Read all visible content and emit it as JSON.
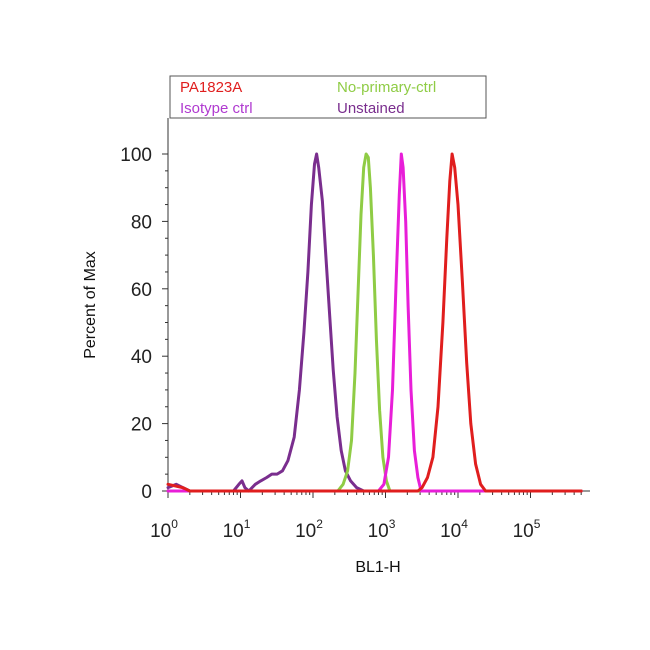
{
  "chart_data": {
    "type": "line",
    "title": "",
    "xlabel": "BL1-H",
    "ylabel": "Percent of Max",
    "x_scale": "log",
    "xlim": [
      1,
      500000
    ],
    "ylim": [
      0,
      108
    ],
    "x_ticks": [
      {
        "value": 1,
        "base": "10",
        "exp": "0"
      },
      {
        "value": 10,
        "base": "10",
        "exp": "1"
      },
      {
        "value": 100,
        "base": "10",
        "exp": "2"
      },
      {
        "value": 1000,
        "base": "10",
        "exp": "3"
      },
      {
        "value": 10000,
        "base": "10",
        "exp": "4"
      },
      {
        "value": 100000,
        "base": "10",
        "exp": "5"
      }
    ],
    "y_ticks": [
      0,
      20,
      40,
      60,
      80,
      100
    ],
    "legend_position": "top",
    "series": [
      {
        "name": "Isotype ctrl",
        "color": "#7a2e8e",
        "points": [
          [
            1,
            1
          ],
          [
            1.3,
            2
          ],
          [
            1.6,
            1
          ],
          [
            2,
            0
          ],
          [
            8,
            0
          ],
          [
            9.5,
            2
          ],
          [
            10.5,
            3
          ],
          [
            11.5,
            1
          ],
          [
            13,
            0
          ],
          [
            16,
            2
          ],
          [
            19,
            3
          ],
          [
            23,
            4
          ],
          [
            27,
            5
          ],
          [
            32,
            5
          ],
          [
            38,
            6
          ],
          [
            45,
            9
          ],
          [
            55,
            16
          ],
          [
            65,
            30
          ],
          [
            75,
            47
          ],
          [
            85,
            65
          ],
          [
            95,
            85
          ],
          [
            105,
            97
          ],
          [
            112,
            100
          ],
          [
            120,
            96
          ],
          [
            135,
            86
          ],
          [
            150,
            70
          ],
          [
            170,
            52
          ],
          [
            190,
            36
          ],
          [
            215,
            22
          ],
          [
            245,
            12
          ],
          [
            280,
            6
          ],
          [
            330,
            3
          ],
          [
            400,
            1
          ],
          [
            500,
            0
          ],
          [
            500000,
            0
          ]
        ]
      },
      {
        "name": "No-primary-ctrl",
        "color": "#8fcc45",
        "points": [
          [
            1,
            0
          ],
          [
            220,
            0
          ],
          [
            260,
            2
          ],
          [
            300,
            6
          ],
          [
            340,
            15
          ],
          [
            380,
            35
          ],
          [
            420,
            60
          ],
          [
            460,
            82
          ],
          [
            500,
            96
          ],
          [
            540,
            100
          ],
          [
            580,
            99
          ],
          [
            620,
            90
          ],
          [
            680,
            70
          ],
          [
            750,
            45
          ],
          [
            830,
            24
          ],
          [
            920,
            10
          ],
          [
            1030,
            3
          ],
          [
            1150,
            0
          ],
          [
            500000,
            0
          ]
        ]
      },
      {
        "name": "Unstained",
        "color": "#e81ed8",
        "points": [
          [
            1,
            0
          ],
          [
            800,
            0
          ],
          [
            950,
            2
          ],
          [
            1100,
            10
          ],
          [
            1250,
            30
          ],
          [
            1400,
            62
          ],
          [
            1550,
            88
          ],
          [
            1650,
            100
          ],
          [
            1750,
            96
          ],
          [
            1900,
            80
          ],
          [
            2050,
            55
          ],
          [
            2250,
            30
          ],
          [
            2500,
            12
          ],
          [
            2800,
            4
          ],
          [
            3100,
            0
          ],
          [
            500000,
            0
          ]
        ]
      },
      {
        "name": "PA1823A",
        "color": "#e01e1e",
        "points": [
          [
            1,
            2
          ],
          [
            1.6,
            1
          ],
          [
            2,
            0
          ],
          [
            2800,
            0
          ],
          [
            3200,
            1
          ],
          [
            3800,
            4
          ],
          [
            4500,
            10
          ],
          [
            5300,
            25
          ],
          [
            6200,
            50
          ],
          [
            7000,
            75
          ],
          [
            7700,
            92
          ],
          [
            8300,
            100
          ],
          [
            9000,
            96
          ],
          [
            10000,
            85
          ],
          [
            11500,
            62
          ],
          [
            13200,
            38
          ],
          [
            15000,
            20
          ],
          [
            17500,
            8
          ],
          [
            20500,
            2
          ],
          [
            24000,
            0
          ],
          [
            500000,
            0
          ]
        ]
      }
    ]
  }
}
